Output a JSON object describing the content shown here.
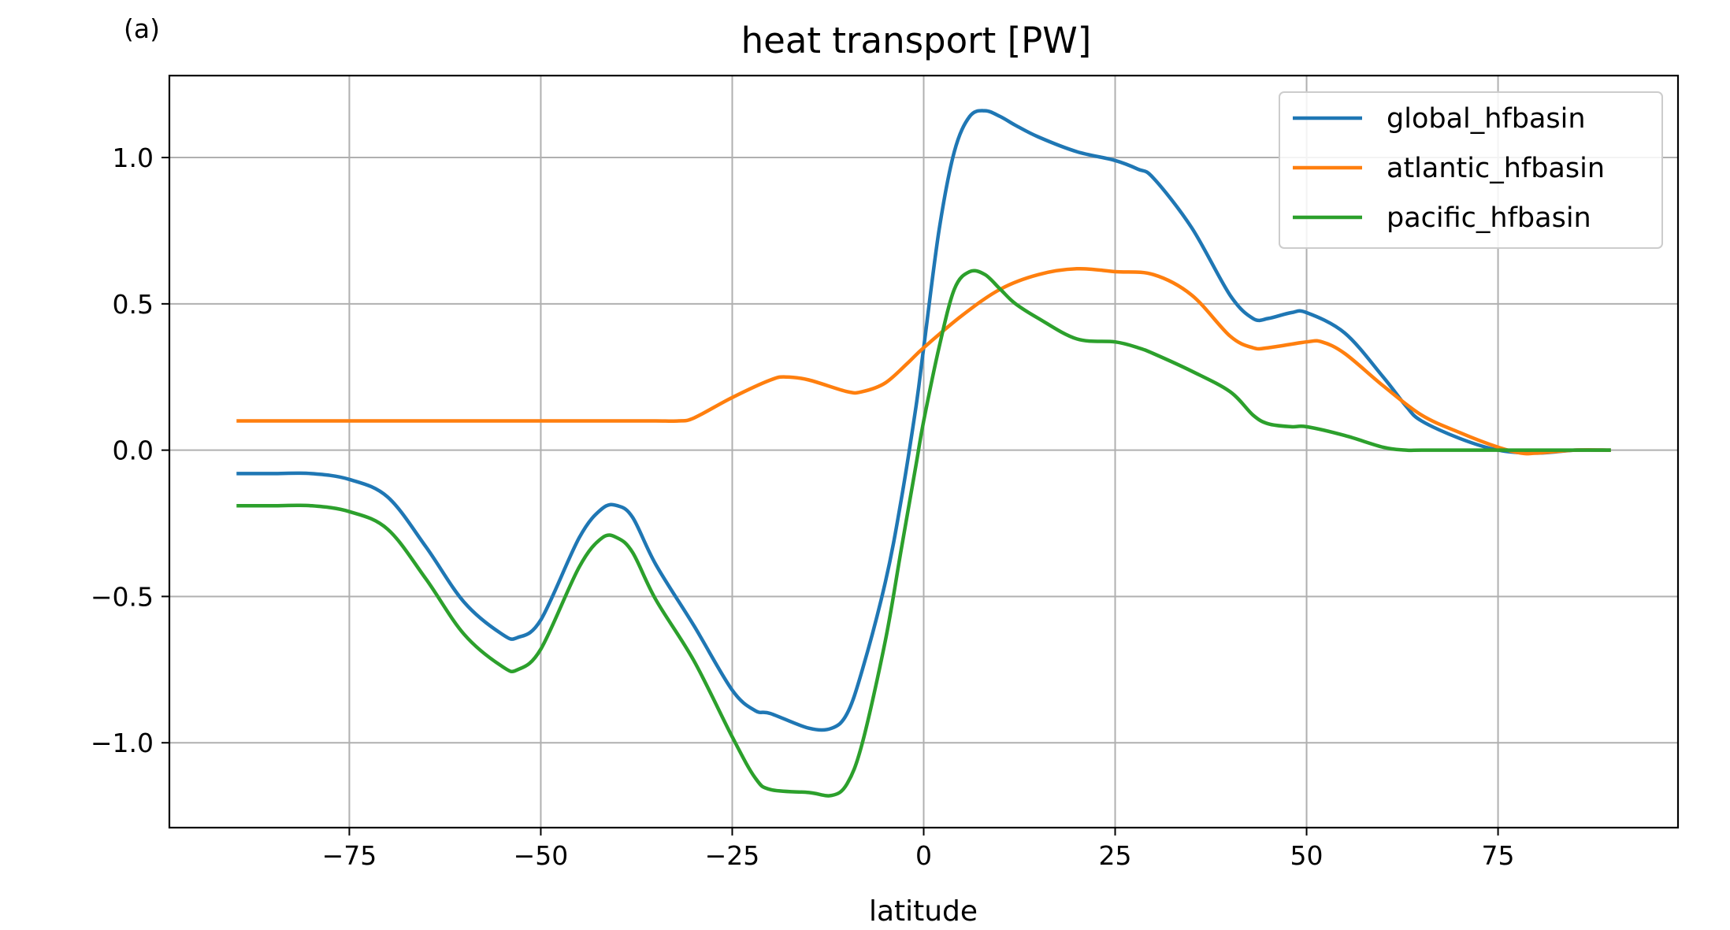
{
  "panel_label": "(a)",
  "chart_data": {
    "type": "line",
    "title": "heat transport [PW]",
    "xlabel": "latitude",
    "ylabel": "",
    "xlim": [
      -98.5,
      98.5
    ],
    "ylim": [
      -1.29,
      1.28
    ],
    "xticks": [
      -75,
      -50,
      -25,
      0,
      25,
      50,
      75
    ],
    "xtick_labels": [
      "−75",
      "−50",
      "−25",
      "0",
      "25",
      "50",
      "75"
    ],
    "yticks": [
      -1.0,
      -0.5,
      0.0,
      0.5,
      1.0
    ],
    "ytick_labels": [
      "−1.0",
      "−0.5",
      "0.0",
      "0.5",
      "1.0"
    ],
    "grid": true,
    "legend_position": "upper right",
    "series": [
      {
        "name": "global_hfbasin",
        "color": "#1f77b4",
        "x": [
          -89.5,
          -85,
          -80,
          -75,
          -70,
          -65,
          -60,
          -55,
          -53,
          -50,
          -45,
          -42,
          -40,
          -38,
          -35,
          -30,
          -25,
          -22,
          -20,
          -15,
          -12,
          -10,
          -8,
          -5,
          -3,
          -1,
          0,
          2,
          4,
          6,
          8,
          10,
          12,
          15,
          20,
          25,
          28,
          30,
          35,
          40,
          43,
          45,
          48,
          50,
          55,
          60,
          63,
          65,
          70,
          75,
          80,
          85,
          89.5
        ],
        "y": [
          -0.08,
          -0.08,
          -0.08,
          -0.1,
          -0.16,
          -0.33,
          -0.52,
          -0.63,
          -0.64,
          -0.58,
          -0.3,
          -0.2,
          -0.19,
          -0.23,
          -0.39,
          -0.6,
          -0.82,
          -0.89,
          -0.9,
          -0.95,
          -0.95,
          -0.9,
          -0.75,
          -0.45,
          -0.18,
          0.15,
          0.35,
          0.75,
          1.02,
          1.14,
          1.16,
          1.14,
          1.11,
          1.07,
          1.02,
          0.99,
          0.96,
          0.93,
          0.76,
          0.53,
          0.45,
          0.45,
          0.47,
          0.47,
          0.4,
          0.25,
          0.15,
          0.1,
          0.04,
          0.0,
          -0.01,
          0.0,
          0.0
        ]
      },
      {
        "name": "atlantic_hfbasin",
        "color": "#ff7f0e",
        "x": [
          -89.5,
          -80,
          -70,
          -60,
          -50,
          -40,
          -35,
          -32,
          -30,
          -25,
          -20,
          -18,
          -15,
          -10,
          -8,
          -5,
          -2,
          0,
          5,
          10,
          15,
          20,
          25,
          30,
          35,
          40,
          43,
          45,
          50,
          52,
          55,
          60,
          65,
          70,
          75,
          78,
          80,
          85,
          89.5
        ],
        "y": [
          0.1,
          0.1,
          0.1,
          0.1,
          0.1,
          0.1,
          0.1,
          0.1,
          0.11,
          0.18,
          0.24,
          0.25,
          0.24,
          0.2,
          0.2,
          0.23,
          0.3,
          0.35,
          0.46,
          0.55,
          0.6,
          0.62,
          0.61,
          0.6,
          0.53,
          0.39,
          0.35,
          0.35,
          0.37,
          0.37,
          0.33,
          0.22,
          0.12,
          0.06,
          0.01,
          -0.01,
          -0.01,
          0.0,
          0.0
        ]
      },
      {
        "name": "pacific_hfbasin",
        "color": "#2ca02c",
        "x": [
          -89.5,
          -85,
          -80,
          -75,
          -70,
          -65,
          -60,
          -55,
          -53,
          -50,
          -45,
          -42,
          -40,
          -38,
          -35,
          -30,
          -25,
          -22,
          -20,
          -15,
          -12,
          -10,
          -8,
          -5,
          -3,
          -1,
          0,
          2,
          4,
          6,
          8,
          10,
          12,
          15,
          20,
          25,
          28,
          30,
          35,
          40,
          43,
          45,
          48,
          50,
          55,
          60,
          63,
          65,
          70,
          75,
          80,
          85,
          89.5
        ],
        "y": [
          -0.19,
          -0.19,
          -0.19,
          -0.21,
          -0.27,
          -0.44,
          -0.63,
          -0.74,
          -0.75,
          -0.68,
          -0.4,
          -0.3,
          -0.3,
          -0.35,
          -0.51,
          -0.72,
          -0.98,
          -1.12,
          -1.16,
          -1.17,
          -1.18,
          -1.14,
          -1.0,
          -0.65,
          -0.35,
          -0.05,
          0.1,
          0.35,
          0.55,
          0.61,
          0.6,
          0.55,
          0.5,
          0.45,
          0.38,
          0.37,
          0.35,
          0.33,
          0.27,
          0.2,
          0.12,
          0.09,
          0.08,
          0.08,
          0.05,
          0.01,
          0.0,
          0.0,
          0.0,
          0.0,
          0.0,
          0.0,
          0.0
        ]
      }
    ]
  }
}
